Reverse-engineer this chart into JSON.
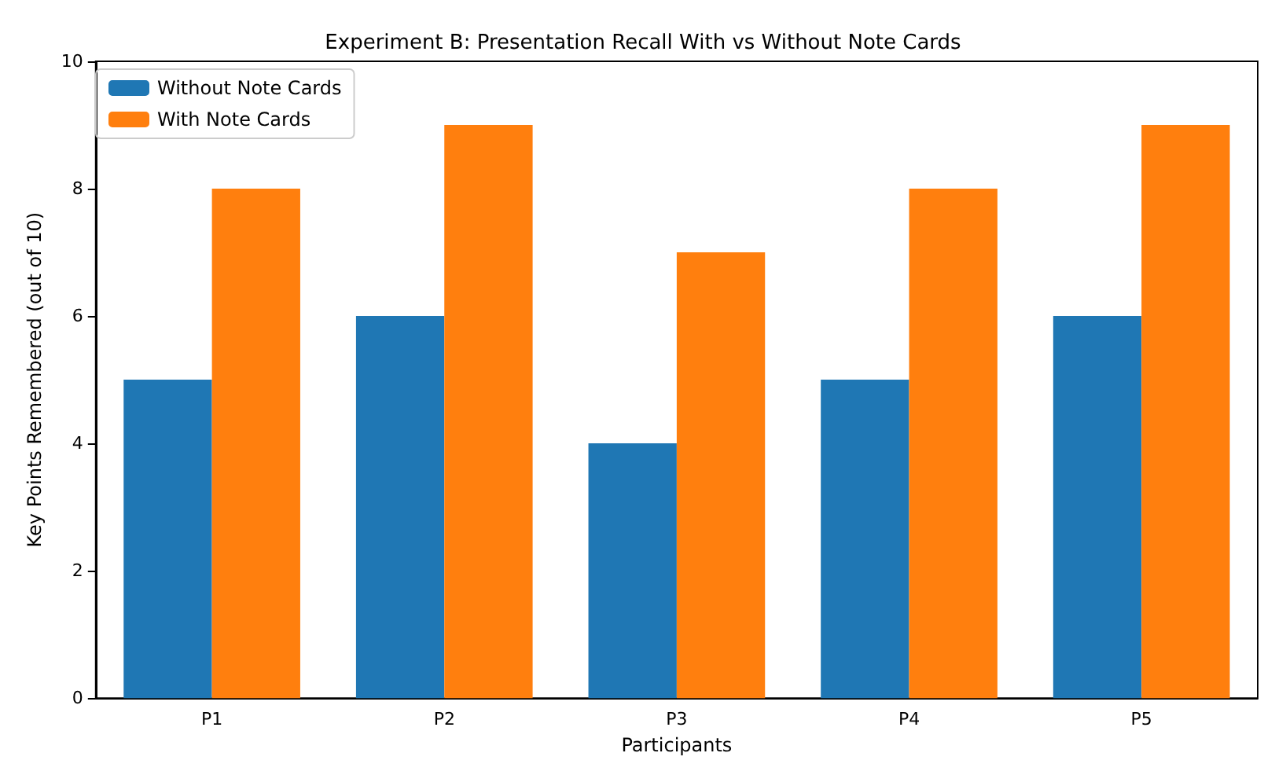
{
  "chart_data": {
    "type": "bar",
    "title": "Experiment B: Presentation Recall With vs Without Note Cards",
    "xlabel": "Participants",
    "ylabel": "Key Points Remembered (out of 10)",
    "categories": [
      "P1",
      "P2",
      "P3",
      "P4",
      "P5"
    ],
    "series": [
      {
        "name": "Without Note Cards",
        "color": "#1f77b4",
        "values": [
          5,
          6,
          4,
          5,
          6
        ]
      },
      {
        "name": "With Note Cards",
        "color": "#ff7f0e",
        "values": [
          8,
          9,
          7,
          8,
          9
        ]
      }
    ],
    "ylim": [
      0,
      10
    ],
    "yticks": [
      0,
      2,
      4,
      6,
      8,
      10
    ],
    "legend": "top left"
  }
}
